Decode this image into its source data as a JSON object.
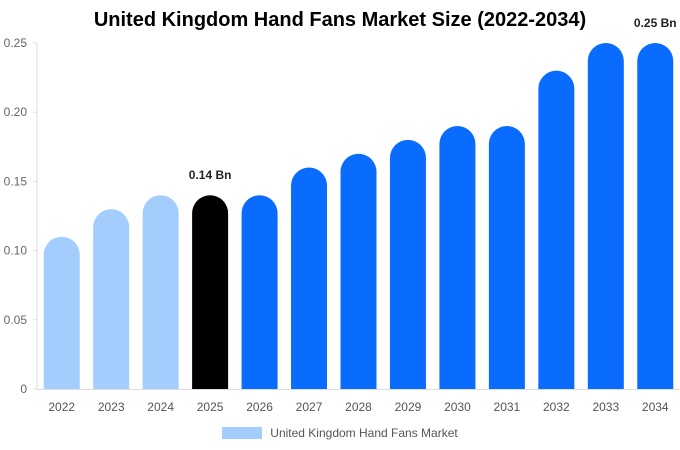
{
  "chart_data": {
    "type": "bar",
    "title": "United Kingdom Hand Fans Market Size (2022-2034)",
    "categories": [
      "2022",
      "2023",
      "2024",
      "2025",
      "2026",
      "2027",
      "2028",
      "2029",
      "2030",
      "2031",
      "2032",
      "2033",
      "2034"
    ],
    "series": [
      {
        "name": "United Kingdom Hand Fans Market",
        "values": [
          0.11,
          0.13,
          0.14,
          0.14,
          0.14,
          0.16,
          0.17,
          0.18,
          0.19,
          0.19,
          0.23,
          0.25,
          0.25
        ]
      }
    ],
    "ylim": [
      0,
      0.25
    ],
    "y_ticks": [
      "0",
      "0.05",
      "0.10",
      "0.15",
      "0.20",
      "0.25"
    ],
    "y_tick_values": [
      0,
      0.05,
      0.1,
      0.15,
      0.2,
      0.25
    ],
    "data_labels": [
      {
        "category": "2025",
        "text": "0.14 Bn"
      },
      {
        "category": "2034",
        "text": "0.25 Bn"
      }
    ],
    "bar_colors": [
      "#a3cdfd",
      "#a3cdfd",
      "#a3cdfd",
      "#000000",
      "#0a6cff",
      "#0a6cff",
      "#0a6cff",
      "#0a6cff",
      "#0a6cff",
      "#0a6cff",
      "#0a6cff",
      "#0a6cff",
      "#0a6cff"
    ],
    "legend_color": "#a3cdfd",
    "legend_position": "bottom",
    "grid": false
  }
}
